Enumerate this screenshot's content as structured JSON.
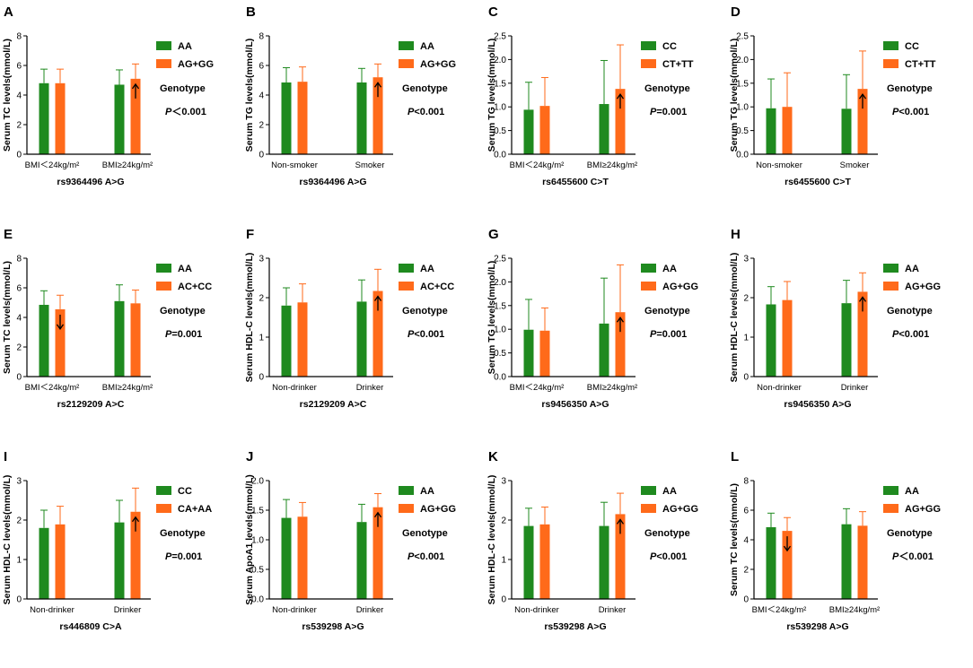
{
  "colors": {
    "green": "#1f8a1f",
    "orange": "#ff6a1a",
    "axis": "#000000"
  },
  "chart_data": [
    {
      "panel": "A",
      "type": "bar",
      "ylabel": "Serum TC levels(mmol/L)",
      "xlabel": "rs9364496 A>G",
      "ylim": [
        0,
        8
      ],
      "yticks": [
        0,
        2,
        4,
        6,
        8
      ],
      "categories": [
        "BMI＜24kg/m²",
        "BMI≥24kg/m²"
      ],
      "series": [
        {
          "name": "AA",
          "values": [
            4.8,
            4.7
          ],
          "errors": [
            0.95,
            1.0
          ]
        },
        {
          "name": "AG+GG",
          "values": [
            4.8,
            5.1
          ],
          "errors": [
            0.95,
            1.0
          ]
        }
      ],
      "legend_title": "Genotype",
      "p_label": "P",
      "p_value": "＜0.001",
      "arrow": {
        "category": 1,
        "direction": "up"
      }
    },
    {
      "panel": "B",
      "type": "bar",
      "ylabel": "Serum TG levels(mmol/L)",
      "xlabel": "rs9364496 A>G",
      "ylim": [
        0,
        8
      ],
      "yticks": [
        0,
        2,
        4,
        6,
        8
      ],
      "categories": [
        "Non-smoker",
        "Smoker"
      ],
      "series": [
        {
          "name": "AA",
          "values": [
            4.85,
            4.85
          ],
          "errors": [
            1.0,
            0.95
          ]
        },
        {
          "name": "AG+GG",
          "values": [
            4.9,
            5.2
          ],
          "errors": [
            1.0,
            0.9
          ]
        }
      ],
      "legend_title": "Genotype",
      "p_label": "P",
      "p_value": "<0.001",
      "arrow": {
        "category": 1,
        "direction": "up"
      }
    },
    {
      "panel": "C",
      "type": "bar",
      "ylabel": "Serum TG levels(mmol/L)",
      "xlabel": "rs6455600 C>T",
      "ylim": [
        0,
        2.5
      ],
      "yticks": [
        0,
        0.5,
        1.0,
        1.5,
        2.0,
        2.5
      ],
      "categories": [
        "BMI＜24kg/m²",
        "BMI≥24kg/m²"
      ],
      "series": [
        {
          "name": "CC",
          "values": [
            0.94,
            1.06
          ],
          "errors": [
            0.58,
            0.92
          ]
        },
        {
          "name": "CT+TT",
          "values": [
            1.02,
            1.38
          ],
          "errors": [
            0.6,
            0.93
          ]
        }
      ],
      "legend_title": "Genotype",
      "p_label": "P",
      "p_value": "=0.001",
      "arrow": {
        "category": 1,
        "direction": "up"
      }
    },
    {
      "panel": "D",
      "type": "bar",
      "ylabel": "Serum TG levels(mmol/L)",
      "xlabel": "rs6455600 C>T",
      "ylim": [
        0,
        2.5
      ],
      "yticks": [
        0,
        0.5,
        1.0,
        1.5,
        2.0,
        2.5
      ],
      "categories": [
        "Non-smoker",
        "Smoker"
      ],
      "series": [
        {
          "name": "CC",
          "values": [
            0.97,
            0.96
          ],
          "errors": [
            0.62,
            0.72
          ]
        },
        {
          "name": "CT+TT",
          "values": [
            1.0,
            1.38
          ],
          "errors": [
            0.72,
            0.8
          ]
        }
      ],
      "legend_title": "Genotype",
      "p_label": "P",
      "p_value": "<0.001",
      "arrow": {
        "category": 1,
        "direction": "up"
      }
    },
    {
      "panel": "E",
      "type": "bar",
      "ylabel": "Serum TC levels(mmol/L)",
      "xlabel": "rs2129209 A>C",
      "ylim": [
        0,
        8
      ],
      "yticks": [
        0,
        2,
        4,
        6,
        8
      ],
      "categories": [
        "BMI＜24kg/m²",
        "BMI≥24kg/m²"
      ],
      "series": [
        {
          "name": "AA",
          "values": [
            4.85,
            5.1
          ],
          "errors": [
            0.95,
            1.1
          ]
        },
        {
          "name": "AC+CC",
          "values": [
            4.55,
            4.95
          ],
          "errors": [
            0.95,
            0.9
          ]
        }
      ],
      "legend_title": "Genotype",
      "p_label": "P",
      "p_value": "=0.001",
      "arrow": {
        "category": 0,
        "direction": "down"
      }
    },
    {
      "panel": "F",
      "type": "bar",
      "ylabel": "Serum HDL-C levels(mmol/L)",
      "xlabel": "rs2129209 A>C",
      "ylim": [
        0,
        3
      ],
      "yticks": [
        0,
        1,
        2,
        3
      ],
      "categories": [
        "Non-drinker",
        "Drinker"
      ],
      "series": [
        {
          "name": "AA",
          "values": [
            1.8,
            1.9
          ],
          "errors": [
            0.45,
            0.55
          ]
        },
        {
          "name": "AC+CC",
          "values": [
            1.88,
            2.17
          ],
          "errors": [
            0.47,
            0.55
          ]
        }
      ],
      "legend_title": "Genotype",
      "p_label": "P",
      "p_value": "<0.001",
      "arrow": {
        "category": 1,
        "direction": "up"
      }
    },
    {
      "panel": "G",
      "type": "bar",
      "ylabel": "Serum TG levels(mmol/L)",
      "xlabel": "rs9456350 A>G",
      "ylim": [
        0,
        2.5
      ],
      "yticks": [
        0,
        0.5,
        1.0,
        1.5,
        2.0,
        2.5
      ],
      "categories": [
        "BMI＜24kg/m²",
        "BMI≥24kg/m²"
      ],
      "series": [
        {
          "name": "AA",
          "values": [
            0.99,
            1.12
          ],
          "errors": [
            0.64,
            0.96
          ]
        },
        {
          "name": "AG+GG",
          "values": [
            0.97,
            1.36
          ],
          "errors": [
            0.48,
            1.0
          ]
        }
      ],
      "legend_title": "Genotype",
      "p_label": "P",
      "p_value": "=0.001",
      "arrow": {
        "category": 1,
        "direction": "up"
      }
    },
    {
      "panel": "H",
      "type": "bar",
      "ylabel": "Serum HDL-C levels(mmol/L)",
      "xlabel": "rs9456350 A>G",
      "ylim": [
        0,
        3
      ],
      "yticks": [
        0,
        1,
        2,
        3
      ],
      "categories": [
        "Non-drinker",
        "Drinker"
      ],
      "series": [
        {
          "name": "AA",
          "values": [
            1.83,
            1.86
          ],
          "errors": [
            0.45,
            0.58
          ]
        },
        {
          "name": "AG+GG",
          "values": [
            1.94,
            2.15
          ],
          "errors": [
            0.47,
            0.48
          ]
        }
      ],
      "legend_title": "Genotype",
      "p_label": "P",
      "p_value": "<0.001",
      "arrow": {
        "category": 1,
        "direction": "up"
      }
    },
    {
      "panel": "I",
      "type": "bar",
      "ylabel": "Serum HDL-C levels(mmol/L)",
      "xlabel": "rs446809 C>A",
      "ylim": [
        0,
        3
      ],
      "yticks": [
        0,
        1,
        2,
        3
      ],
      "categories": [
        "Non-drinker",
        "Drinker"
      ],
      "series": [
        {
          "name": "CC",
          "values": [
            1.8,
            1.94
          ],
          "errors": [
            0.45,
            0.56
          ]
        },
        {
          "name": "CA+AA",
          "values": [
            1.89,
            2.21
          ],
          "errors": [
            0.46,
            0.6
          ]
        }
      ],
      "legend_title": "Genotype",
      "p_label": "P",
      "p_value": "=0.001",
      "arrow": {
        "category": 1,
        "direction": "up"
      }
    },
    {
      "panel": "J",
      "type": "bar",
      "ylabel": "Serum ApoA1 levels(mmol/L)",
      "xlabel": "rs539298 A>G",
      "ylim": [
        0,
        2.0
      ],
      "yticks": [
        0,
        0.5,
        1.0,
        1.5,
        2.0
      ],
      "categories": [
        "Non-drinker",
        "Drinker"
      ],
      "series": [
        {
          "name": "AA",
          "values": [
            1.37,
            1.3
          ],
          "errors": [
            0.31,
            0.3
          ]
        },
        {
          "name": "AG+GG",
          "values": [
            1.39,
            1.55
          ],
          "errors": [
            0.24,
            0.23
          ]
        }
      ],
      "legend_title": "Genotype",
      "p_label": "P",
      "p_value": "<0.001",
      "arrow": {
        "category": 1,
        "direction": "up"
      }
    },
    {
      "panel": "K",
      "type": "bar",
      "ylabel": "Serum HDL-C levels(mmol/L)",
      "xlabel": "rs539298 A>G",
      "ylim": [
        0,
        3
      ],
      "yticks": [
        0,
        1,
        2,
        3
      ],
      "categories": [
        "Non-drinker",
        "Drinker"
      ],
      "series": [
        {
          "name": "AA",
          "values": [
            1.85,
            1.85
          ],
          "errors": [
            0.45,
            0.6
          ]
        },
        {
          "name": "AG+GG",
          "values": [
            1.89,
            2.15
          ],
          "errors": [
            0.44,
            0.53
          ]
        }
      ],
      "legend_title": "Genotype",
      "p_label": "P",
      "p_value": "<0.001",
      "arrow": {
        "category": 1,
        "direction": "up"
      }
    },
    {
      "panel": "L",
      "type": "bar",
      "ylabel": "Serum TC levels(mmol/L)",
      "xlabel": "rs539298 A>G",
      "ylim": [
        0,
        8
      ],
      "yticks": [
        0,
        2,
        4,
        6,
        8
      ],
      "categories": [
        "BMI＜24kg/m²",
        "BMI≥24kg/m²"
      ],
      "series": [
        {
          "name": "AA",
          "values": [
            4.85,
            5.05
          ],
          "errors": [
            0.95,
            1.05
          ]
        },
        {
          "name": "AG+GG",
          "values": [
            4.6,
            4.95
          ],
          "errors": [
            0.9,
            0.95
          ]
        }
      ],
      "legend_title": "Genotype",
      "p_label": "P",
      "p_value": "＜0.001",
      "arrow": {
        "category": 0,
        "direction": "down"
      }
    }
  ]
}
